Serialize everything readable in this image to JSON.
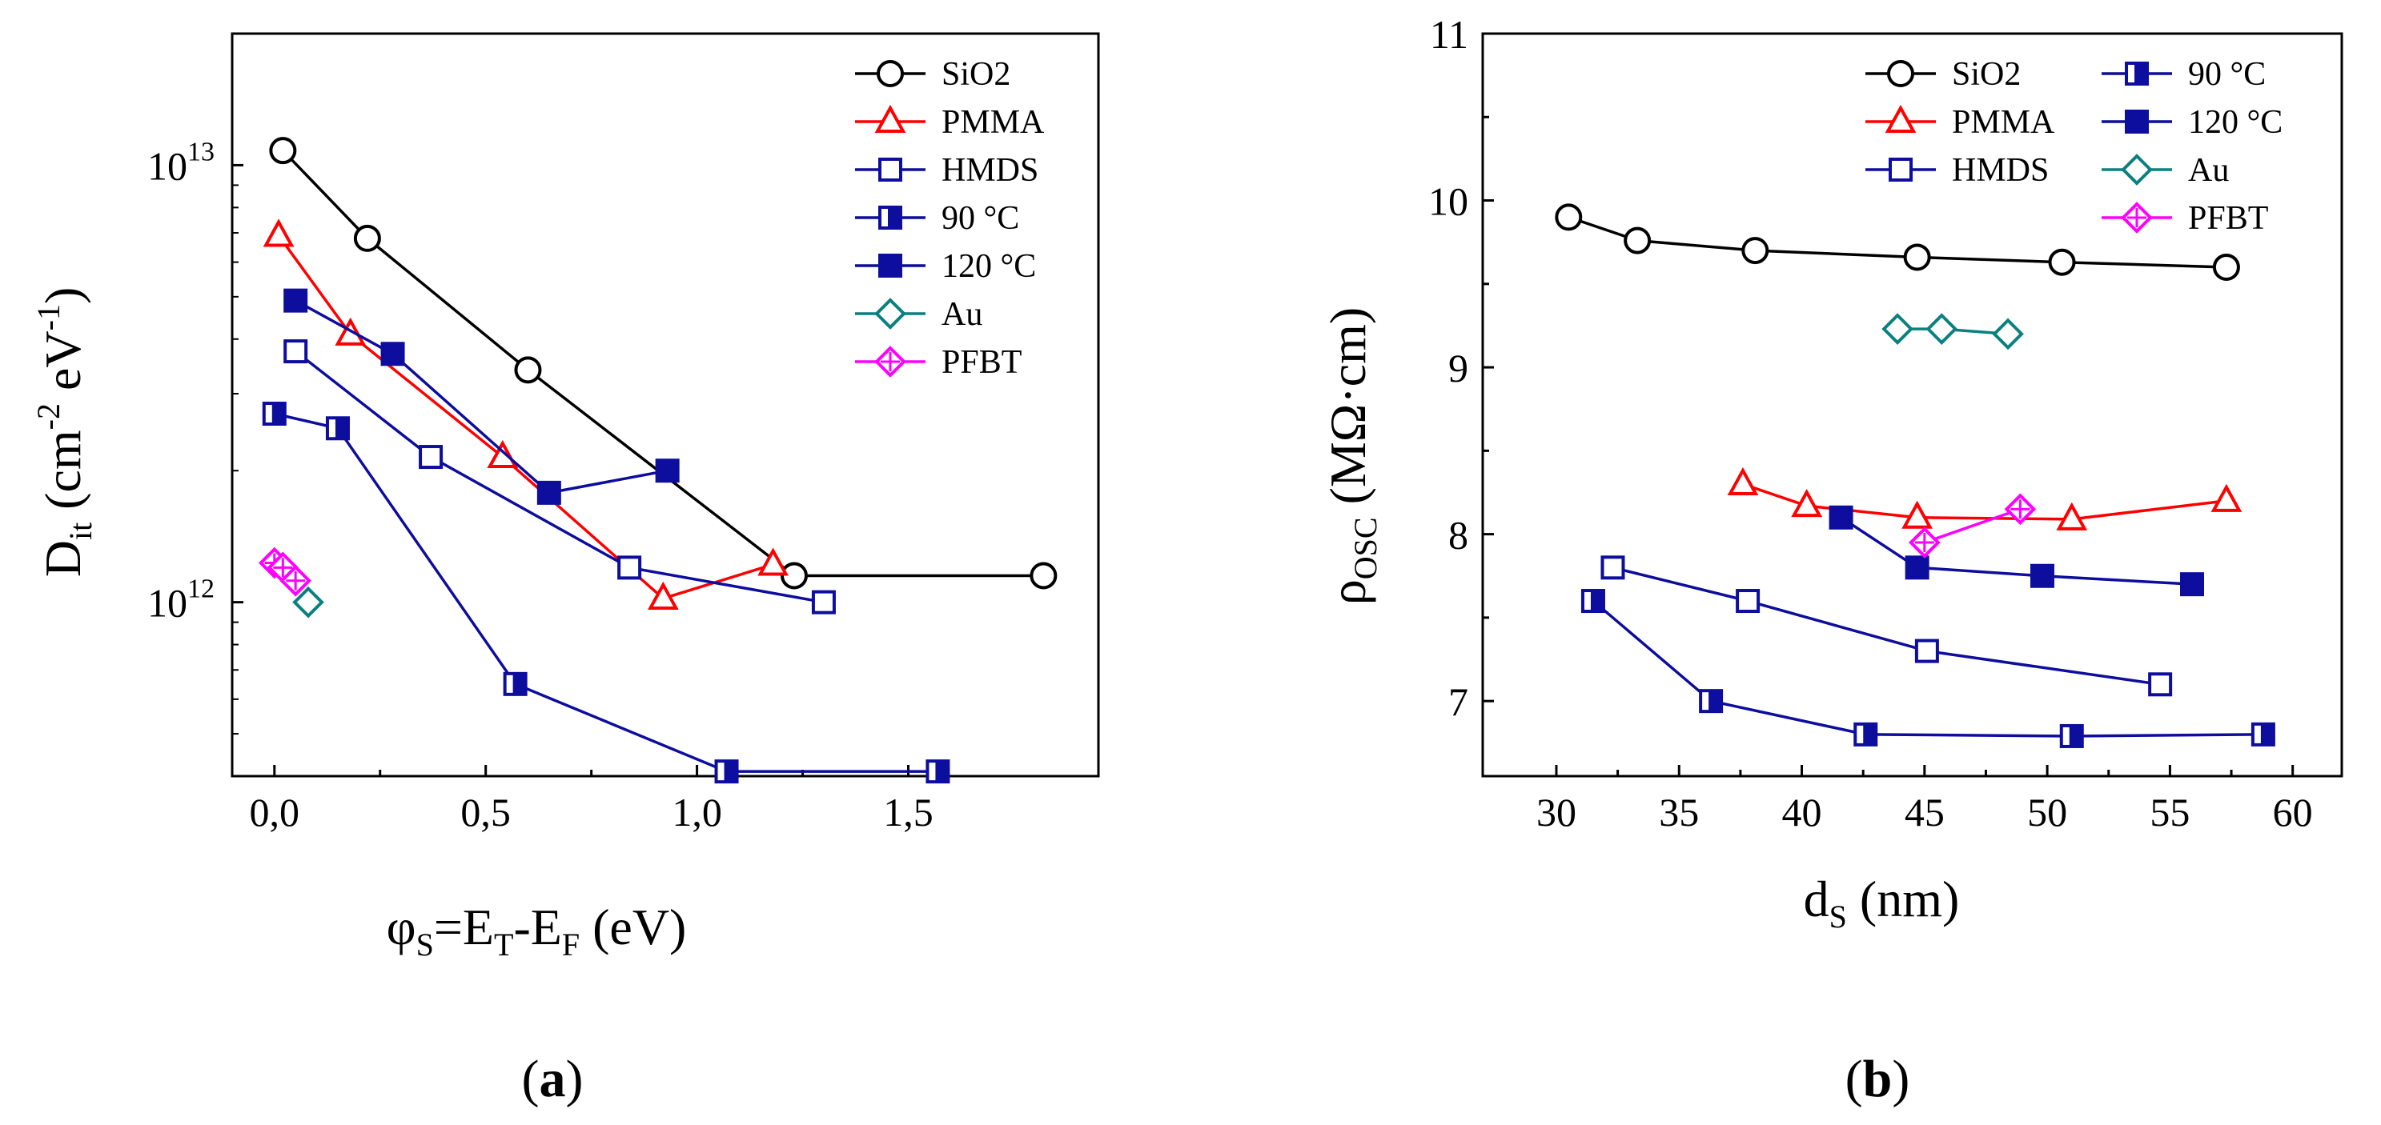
{
  "panel_labels": [
    "a",
    "b"
  ],
  "colors": {
    "SiO2": "#000000",
    "PMMA": "#ff0000",
    "HMDS": "#0d0d9e",
    "90C": "#0d0d9e",
    "120C": "#0d0d9e",
    "Au": "#0a8080",
    "PFBT": "#ff00ff"
  },
  "chart_data": [
    {
      "type": "line",
      "panel": "a",
      "xlabel": "φS=ET-EF (eV)",
      "ylabel": "Dit (cm-2 eV-1)",
      "xlim": [
        -0.1,
        1.95
      ],
      "ylim": [
        400000000000.0,
        20000000000000.0
      ],
      "yscale": "log",
      "grid": false,
      "legend_position": "top-right",
      "x_ticks": [
        "0,0",
        "0,5",
        "1,0",
        "1,5"
      ],
      "x_tick_values": [
        0,
        0.5,
        1.0,
        1.5
      ],
      "y_ticks": [
        {
          "base": "10",
          "exp": "13",
          "value": 10000000000000.0
        },
        {
          "base": "10",
          "exp": "12",
          "value": 1000000000000.0
        }
      ],
      "series": [
        {
          "name": "SiO2",
          "marker": "circle-open",
          "color": "#000000",
          "points": [
            [
              0.02,
              10800000000000.0
            ],
            [
              0.22,
              6800000000000.0
            ],
            [
              0.6,
              3400000000000.0
            ],
            [
              1.23,
              1150000000000.0
            ],
            [
              1.82,
              1150000000000.0
            ]
          ]
        },
        {
          "name": "PMMA",
          "marker": "triangle-open",
          "color": "#ff0000",
          "points": [
            [
              0.01,
              6900000000000.0
            ],
            [
              0.18,
              4100000000000.0
            ],
            [
              0.54,
              2150000000000.0
            ],
            [
              0.92,
              1020000000000.0
            ],
            [
              1.18,
              1220000000000.0
            ]
          ]
        },
        {
          "name": "HMDS",
          "marker": "square-open",
          "color": "#0d0d9e",
          "points": [
            [
              0.05,
              3750000000000.0
            ],
            [
              0.37,
              2150000000000.0
            ],
            [
              0.84,
              1200000000000.0
            ],
            [
              1.3,
              1000000000000.0
            ]
          ]
        },
        {
          "name": "90 °C",
          "marker": "square-half",
          "color": "#0d0d9e",
          "points": [
            [
              0.0,
              2700000000000.0
            ],
            [
              0.15,
              2500000000000.0
            ],
            [
              0.57,
              650000000000.0
            ],
            [
              1.07,
              410000000000.0
            ],
            [
              1.57,
              410000000000.0
            ]
          ]
        },
        {
          "name": "120 °C",
          "marker": "square-filled",
          "color": "#0d0d9e",
          "points": [
            [
              0.05,
              4900000000000.0
            ],
            [
              0.28,
              3700000000000.0
            ],
            [
              0.65,
              1780000000000.0
            ],
            [
              0.93,
              2000000000000.0
            ]
          ]
        },
        {
          "name": "Au",
          "marker": "diamond-open",
          "color": "#0a8080",
          "points": [
            [
              0.08,
              1000000000000.0
            ]
          ]
        },
        {
          "name": "PFBT",
          "marker": "diamond-cross",
          "color": "#ff00ff",
          "points": [
            [
              0.0,
              1230000000000.0
            ],
            [
              0.02,
              1200000000000.0
            ],
            [
              0.05,
              1120000000000.0
            ]
          ]
        }
      ]
    },
    {
      "type": "line",
      "panel": "b",
      "xlabel": "dS (nm)",
      "ylabel": "ρOSC (MΩ·cm)",
      "xlim": [
        27,
        62
      ],
      "ylim": [
        6.55,
        11
      ],
      "grid": false,
      "legend_position": "top-right",
      "x_ticks": [
        "30",
        "35",
        "40",
        "45",
        "50",
        "55",
        "60"
      ],
      "x_tick_values": [
        30,
        35,
        40,
        45,
        50,
        55,
        60
      ],
      "y_ticks": [
        "7",
        "8",
        "9",
        "10",
        "11"
      ],
      "y_tick_values": [
        7,
        8,
        9,
        10,
        11
      ],
      "series": [
        {
          "name": "SiO2",
          "marker": "circle-open",
          "color": "#000000",
          "points": [
            [
              30.5,
              9.9
            ],
            [
              33.3,
              9.76
            ],
            [
              38.1,
              9.7
            ],
            [
              44.7,
              9.66
            ],
            [
              50.6,
              9.63
            ],
            [
              57.3,
              9.6
            ]
          ]
        },
        {
          "name": "PMMA",
          "marker": "triangle-open",
          "color": "#ff0000",
          "points": [
            [
              37.6,
              8.3
            ],
            [
              40.2,
              8.17
            ],
            [
              44.7,
              8.1
            ],
            [
              51.0,
              8.09
            ],
            [
              57.3,
              8.2
            ]
          ]
        },
        {
          "name": "HMDS",
          "marker": "square-open",
          "color": "#0d0d9e",
          "points": [
            [
              32.3,
              7.8
            ],
            [
              37.8,
              7.6
            ],
            [
              45.1,
              7.3
            ],
            [
              54.6,
              7.1
            ]
          ]
        },
        {
          "name": "90 °C",
          "marker": "square-half",
          "color": "#0d0d9e",
          "points": [
            [
              31.5,
              7.6
            ],
            [
              36.3,
              7.0
            ],
            [
              42.6,
              6.8
            ],
            [
              51.0,
              6.79
            ],
            [
              58.8,
              6.8
            ]
          ]
        },
        {
          "name": "120 °C",
          "marker": "square-filled",
          "color": "#0d0d9e",
          "points": [
            [
              41.6,
              8.1
            ],
            [
              44.7,
              7.8
            ],
            [
              49.8,
              7.75
            ],
            [
              55.9,
              7.7
            ]
          ]
        },
        {
          "name": "Au",
          "marker": "diamond-open",
          "color": "#0a8080",
          "points": [
            [
              43.9,
              9.23
            ],
            [
              45.7,
              9.23
            ],
            [
              48.4,
              9.2
            ]
          ]
        },
        {
          "name": "PFBT",
          "marker": "diamond-cross",
          "color": "#ff00ff",
          "points": [
            [
              45.0,
              7.95
            ],
            [
              48.9,
              8.15
            ]
          ]
        }
      ]
    }
  ]
}
